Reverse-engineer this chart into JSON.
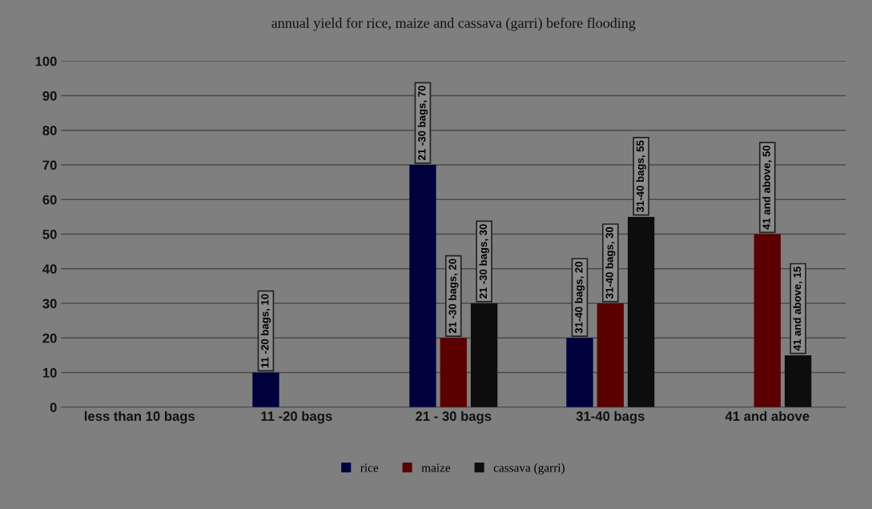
{
  "chart_data": {
    "type": "bar",
    "title": "annual yield for rice, maize and cassava (garri) before flooding",
    "categories": [
      "less than 10 bags",
      "11 -20 bags",
      "21 - 30 bags",
      "31-40 bags",
      "41 and above"
    ],
    "series": [
      {
        "name": "rice",
        "color": "#00003c",
        "values": [
          null,
          10,
          70,
          20,
          null
        ],
        "value_labels": [
          null,
          "11 -20 bags, 10",
          "21 -30 bags, 70",
          "31-40 bags, 20",
          null
        ]
      },
      {
        "name": "maize",
        "color": "#5a0000",
        "values": [
          null,
          null,
          20,
          30,
          50
        ],
        "value_labels": [
          null,
          null,
          "21 -30 bags, 20",
          "31-40 bags, 30",
          "41 and above, 50"
        ]
      },
      {
        "name": "cassava (garri)",
        "color": "#0d0d0d",
        "values": [
          null,
          null,
          30,
          55,
          15
        ],
        "value_labels": [
          null,
          null,
          "21 -30 bags, 30",
          "31-40 bags, 55",
          "41 and above, 15"
        ]
      }
    ],
    "ylim": [
      0,
      100
    ],
    "yticks": [
      0,
      10,
      20,
      30,
      40,
      50,
      60,
      70,
      80,
      90,
      100
    ],
    "grid": "y",
    "legend": "bottom"
  }
}
